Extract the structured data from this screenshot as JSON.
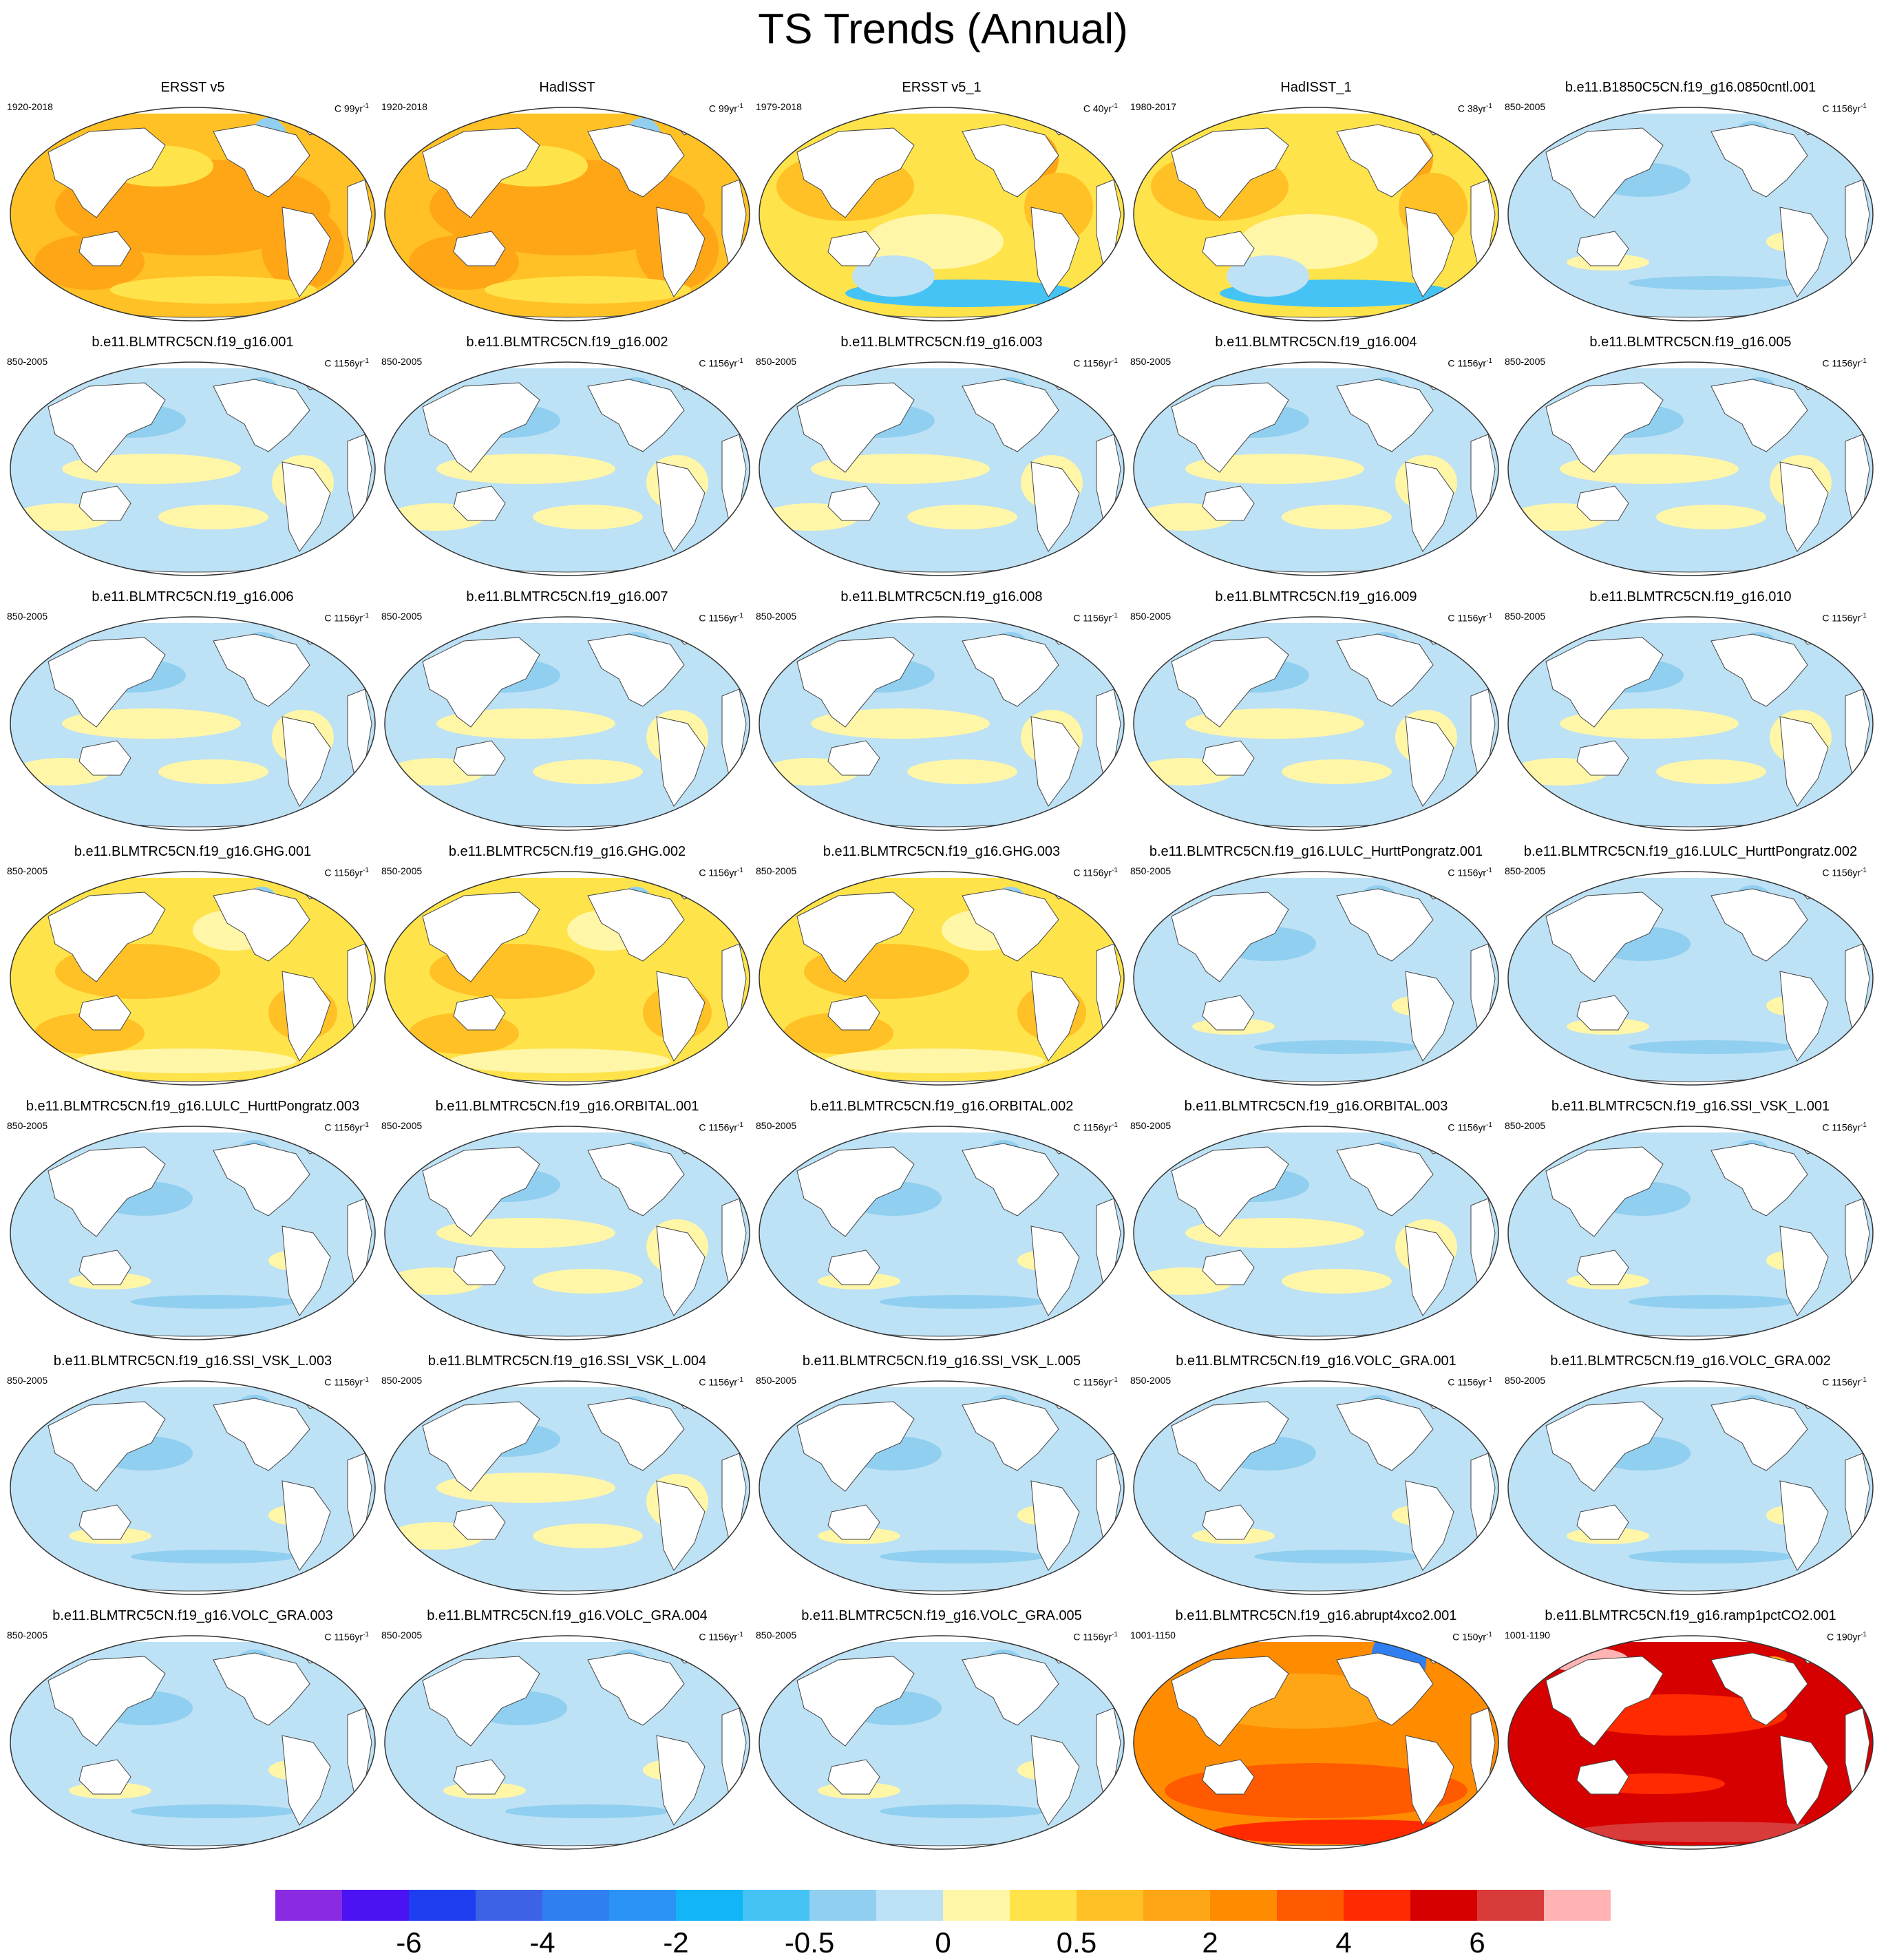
{
  "title": "TS Trends (Annual)",
  "colors": {
    "land": "#ffffff",
    "coast": "#444444",
    "palette": [
      "#8a2be2",
      "#4b12f2",
      "#1f3ef0",
      "#3d62e6",
      "#2f7ff0",
      "#2b93f5",
      "#12b5f7",
      "#45c3f5",
      "#90cff0",
      "#bde1f5",
      "#fff6a8",
      "#ffe34a",
      "#ffc125",
      "#ffa616",
      "#ff8c00",
      "#ff5a00",
      "#ff2a00",
      "#d70000",
      "#d93a3a",
      "#ffb3b3"
    ]
  },
  "panels": [
    {
      "title": "ERSST v5",
      "period": "1920-2018",
      "units": "C 99yr",
      "field": "warm1"
    },
    {
      "title": "HadISST",
      "period": "1920-2018",
      "units": "C 99yr",
      "field": "warm1"
    },
    {
      "title": "ERSST v5_1",
      "period": "1979-2018",
      "units": "C 40yr",
      "field": "warm2"
    },
    {
      "title": "HadISST_1",
      "period": "1980-2017",
      "units": "C 38yr",
      "field": "warm2"
    },
    {
      "title": "b.e11.B1850C5CN.f19_g16.0850cntl.001",
      "period": "850-2005",
      "units": "C 1156yr",
      "field": "cool"
    },
    {
      "title": "b.e11.BLMTRC5CN.f19_g16.001",
      "period": "850-2005",
      "units": "C 1156yr",
      "field": "mix"
    },
    {
      "title": "b.e11.BLMTRC5CN.f19_g16.002",
      "period": "850-2005",
      "units": "C 1156yr",
      "field": "mix"
    },
    {
      "title": "b.e11.BLMTRC5CN.f19_g16.003",
      "period": "850-2005",
      "units": "C 1156yr",
      "field": "mix"
    },
    {
      "title": "b.e11.BLMTRC5CN.f19_g16.004",
      "period": "850-2005",
      "units": "C 1156yr",
      "field": "mix"
    },
    {
      "title": "b.e11.BLMTRC5CN.f19_g16.005",
      "period": "850-2005",
      "units": "C 1156yr",
      "field": "mix"
    },
    {
      "title": "b.e11.BLMTRC5CN.f19_g16.006",
      "period": "850-2005",
      "units": "C 1156yr",
      "field": "mix"
    },
    {
      "title": "b.e11.BLMTRC5CN.f19_g16.007",
      "period": "850-2005",
      "units": "C 1156yr",
      "field": "mix"
    },
    {
      "title": "b.e11.BLMTRC5CN.f19_g16.008",
      "period": "850-2005",
      "units": "C 1156yr",
      "field": "mix"
    },
    {
      "title": "b.e11.BLMTRC5CN.f19_g16.009",
      "period": "850-2005",
      "units": "C 1156yr",
      "field": "mix"
    },
    {
      "title": "b.e11.BLMTRC5CN.f19_g16.010",
      "period": "850-2005",
      "units": "C 1156yr",
      "field": "mix"
    },
    {
      "title": "b.e11.BLMTRC5CN.f19_g16.GHG.001",
      "period": "850-2005",
      "units": "C 1156yr",
      "field": "ghg"
    },
    {
      "title": "b.e11.BLMTRC5CN.f19_g16.GHG.002",
      "period": "850-2005",
      "units": "C 1156yr",
      "field": "ghg"
    },
    {
      "title": "b.e11.BLMTRC5CN.f19_g16.GHG.003",
      "period": "850-2005",
      "units": "C 1156yr",
      "field": "ghg"
    },
    {
      "title": "b.e11.BLMTRC5CN.f19_g16.LULC_HurttPongratz.001",
      "period": "850-2005",
      "units": "C 1156yr",
      "field": "cool"
    },
    {
      "title": "b.e11.BLMTRC5CN.f19_g16.LULC_HurttPongratz.002",
      "period": "850-2005",
      "units": "C 1156yr",
      "field": "cool"
    },
    {
      "title": "b.e11.BLMTRC5CN.f19_g16.LULC_HurttPongratz.003",
      "period": "850-2005",
      "units": "C 1156yr",
      "field": "cool"
    },
    {
      "title": "b.e11.BLMTRC5CN.f19_g16.ORBITAL.001",
      "period": "850-2005",
      "units": "C 1156yr",
      "field": "mix"
    },
    {
      "title": "b.e11.BLMTRC5CN.f19_g16.ORBITAL.002",
      "period": "850-2005",
      "units": "C 1156yr",
      "field": "cool"
    },
    {
      "title": "b.e11.BLMTRC5CN.f19_g16.ORBITAL.003",
      "period": "850-2005",
      "units": "C 1156yr",
      "field": "mix"
    },
    {
      "title": "b.e11.BLMTRC5CN.f19_g16.SSI_VSK_L.001",
      "period": "850-2005",
      "units": "C 1156yr",
      "field": "cool"
    },
    {
      "title": "b.e11.BLMTRC5CN.f19_g16.SSI_VSK_L.003",
      "period": "850-2005",
      "units": "C 1156yr",
      "field": "cool"
    },
    {
      "title": "b.e11.BLMTRC5CN.f19_g16.SSI_VSK_L.004",
      "period": "850-2005",
      "units": "C 1156yr",
      "field": "mix"
    },
    {
      "title": "b.e11.BLMTRC5CN.f19_g16.SSI_VSK_L.005",
      "period": "850-2005",
      "units": "C 1156yr",
      "field": "cool"
    },
    {
      "title": "b.e11.BLMTRC5CN.f19_g16.VOLC_GRA.001",
      "period": "850-2005",
      "units": "C 1156yr",
      "field": "cool"
    },
    {
      "title": "b.e11.BLMTRC5CN.f19_g16.VOLC_GRA.002",
      "period": "850-2005",
      "units": "C 1156yr",
      "field": "cool"
    },
    {
      "title": "b.e11.BLMTRC5CN.f19_g16.VOLC_GRA.003",
      "period": "850-2005",
      "units": "C 1156yr",
      "field": "cool"
    },
    {
      "title": "b.e11.BLMTRC5CN.f19_g16.VOLC_GRA.004",
      "period": "850-2005",
      "units": "C 1156yr",
      "field": "cool"
    },
    {
      "title": "b.e11.BLMTRC5CN.f19_g16.VOLC_GRA.005",
      "period": "850-2005",
      "units": "C 1156yr",
      "field": "cool"
    },
    {
      "title": "b.e11.BLMTRC5CN.f19_g16.abrupt4xco2.001",
      "period": "1001-1150",
      "units": "C 150yr",
      "field": "hot"
    },
    {
      "title": "b.e11.BLMTRC5CN.f19_g16.ramp1pctCO2.001",
      "period": "1001-1190",
      "units": "C 190yr",
      "field": "hotter"
    }
  ],
  "colorbar": {
    "labels": [
      "-6",
      "-4",
      "-2",
      "-0.5",
      "0",
      "0.5",
      "2",
      "4",
      "6"
    ]
  }
}
